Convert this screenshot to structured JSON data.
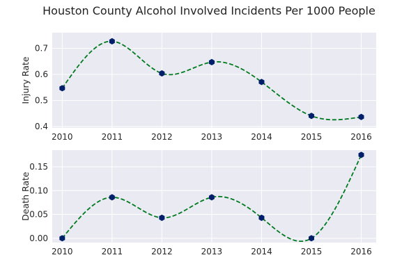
{
  "title": "Houston County Alcohol Involved Incidents Per 1000 People",
  "colors": {
    "plot_bg": "#eaeaf2",
    "grid": "#ffffff",
    "line": "#007a1e",
    "marker": "#001f6b"
  },
  "chart_data": [
    {
      "type": "line",
      "x": [
        2010,
        2011,
        2012,
        2013,
        2014,
        2015,
        2016
      ],
      "xticks": [
        "2010",
        "2011",
        "2012",
        "2013",
        "2014",
        "2015",
        "2016"
      ],
      "xlim": [
        2009.8,
        2016.3
      ],
      "ylabel": "Injury Rate",
      "ylim": [
        0.395,
        0.76
      ],
      "yticks": [
        0.4,
        0.5,
        0.6,
        0.7
      ],
      "ytick_labels": [
        "0.4",
        "0.5",
        "0.6",
        "0.7"
      ],
      "series": [
        {
          "values": [
            0.547,
            0.727,
            0.604,
            0.647,
            0.571,
            0.441,
            0.437
          ],
          "style": "markers"
        },
        {
          "values": [
            0.547,
            0.727,
            0.604,
            0.647,
            0.571,
            0.441,
            0.437
          ],
          "style": "dashed-smooth"
        }
      ],
      "grid": true
    },
    {
      "type": "line",
      "x": [
        2010,
        2011,
        2012,
        2013,
        2014,
        2015,
        2016
      ],
      "xticks": [
        "2010",
        "2011",
        "2012",
        "2013",
        "2014",
        "2015",
        "2016"
      ],
      "xlim": [
        2009.8,
        2016.3
      ],
      "ylabel": "Death Rate",
      "ylim": [
        -0.009,
        0.185
      ],
      "yticks": [
        0.0,
        0.05,
        0.1,
        0.15
      ],
      "ytick_labels": [
        "0.00",
        "0.05",
        "0.10",
        "0.15"
      ],
      "series": [
        {
          "values": [
            0.0,
            0.086,
            0.043,
            0.086,
            0.043,
            0.0,
            0.175
          ],
          "style": "markers"
        },
        {
          "values": [
            0.0,
            0.086,
            0.043,
            0.086,
            0.043,
            0.0,
            0.175
          ],
          "style": "dashed-smooth"
        }
      ],
      "grid": true
    }
  ]
}
